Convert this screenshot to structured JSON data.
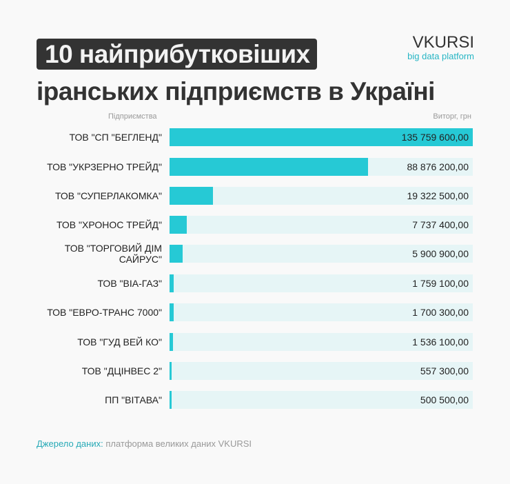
{
  "title": {
    "line1": "10 найприбутковіших",
    "line2": "іранських підприємств в Україні"
  },
  "logo": {
    "name": "VKURSI",
    "tagline": "big data platform"
  },
  "source": {
    "label": "Джерело даних:",
    "text": "платформа великих даних VKURSI"
  },
  "colors": {
    "bar": "#26c9d5",
    "track": "#e6f5f6",
    "accent": "#26a9b6"
  },
  "chart_data": {
    "type": "bar",
    "orientation": "horizontal",
    "xlabel": "Підприємства",
    "ylabel": "Виторг, грн",
    "categories": [
      "ТОВ \"СП \"БЕГЛЕНД\"",
      "ТОВ \"УКРЗЕРНО ТРЕЙД\"",
      "ТОВ \"СУПЕРЛАКОМКА\"",
      "ТОВ \"ХРОНОС ТРЕЙД\"",
      "ТОВ \"ТОРГОВИЙ ДІМ САЙРУС\"",
      "ТОВ \"ВІА-ГАЗ\"",
      "ТОВ \"ЕВРО-ТРАНС 7000\"",
      "ТОВ \"ГУД ВЕЙ КО\"",
      "ТОВ \"ДЦІНВЕС 2\"",
      "ПП \"ВІТАВА\""
    ],
    "values": [
      135759600,
      88876200,
      19322500,
      7737400,
      5900900,
      1759100,
      1700300,
      1536100,
      557300,
      500500
    ],
    "value_labels": [
      "135 759 600,00",
      "88 876 200,00",
      "19 322 500,00",
      "7 737 400,00",
      "5 900 900,00",
      "1 759 100,00",
      "1 700 300,00",
      "1 536 100,00",
      "557 300,00",
      "500 500,00"
    ],
    "xlim": [
      0,
      135759600
    ]
  }
}
